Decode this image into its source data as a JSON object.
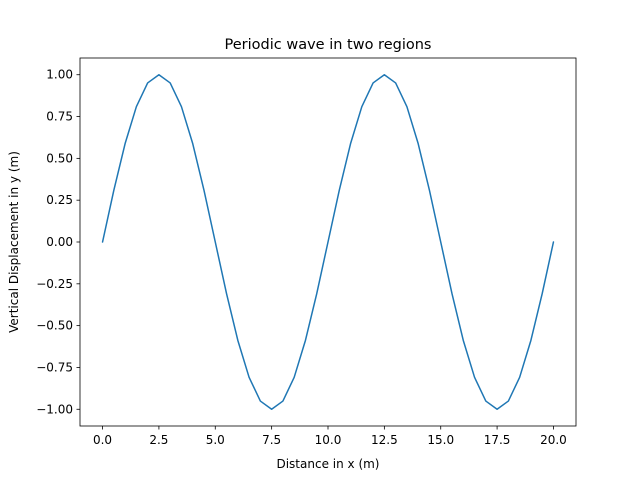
{
  "chart_data": {
    "type": "line",
    "title": "Periodic wave in two regions",
    "xlabel": "Distance in x (m)",
    "ylabel": "Vertical Displacement in y (m)",
    "xlim": [
      -1.0,
      21.0
    ],
    "ylim": [
      -1.1,
      1.1
    ],
    "xticks": [
      0.0,
      2.5,
      5.0,
      7.5,
      10.0,
      12.5,
      15.0,
      17.5,
      20.0
    ],
    "xtick_labels": [
      "0.0",
      "2.5",
      "5.0",
      "7.5",
      "10.0",
      "12.5",
      "15.0",
      "17.5",
      "20.0"
    ],
    "yticks": [
      -1.0,
      -0.75,
      -0.5,
      -0.25,
      0.0,
      0.25,
      0.5,
      0.75,
      1.0
    ],
    "ytick_labels": [
      "−1.00",
      "−0.75",
      "−0.50",
      "−0.25",
      "0.00",
      "0.25",
      "0.50",
      "0.75",
      "1.00"
    ],
    "grid": false,
    "series": [
      {
        "color": "#1f77b4",
        "x": [
          0,
          0.5,
          1,
          1.5,
          2,
          2.5,
          3,
          3.5,
          4,
          4.5,
          5,
          5.5,
          6,
          6.5,
          7,
          7.5,
          8,
          8.5,
          9,
          9.5,
          10,
          10.5,
          11,
          11.5,
          12,
          12.5,
          13,
          13.5,
          14,
          14.5,
          15,
          15.5,
          16,
          16.5,
          17,
          17.5,
          18,
          18.5,
          19,
          19.5,
          20
        ],
        "y": [
          0.0,
          0.309,
          0.588,
          0.809,
          0.951,
          1.0,
          0.951,
          0.809,
          0.588,
          0.309,
          0.0,
          -0.309,
          -0.588,
          -0.809,
          -0.951,
          -1.0,
          -0.951,
          -0.809,
          -0.588,
          -0.309,
          0.0,
          0.309,
          0.588,
          0.809,
          0.951,
          1.0,
          0.951,
          0.809,
          0.588,
          0.309,
          0.0,
          -0.309,
          -0.588,
          -0.809,
          -0.951,
          -1.0,
          -0.951,
          -0.809,
          -0.588,
          -0.309,
          0.0
        ]
      }
    ]
  }
}
